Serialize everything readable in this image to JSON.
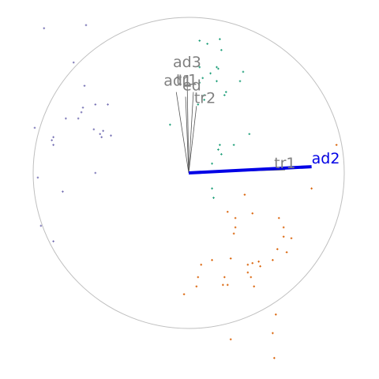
{
  "chart_data": {
    "type": "scatter",
    "subtype": "biplot with circle of correlation",
    "title": "",
    "xlabel": "",
    "ylabel": "",
    "circle_radius": 1.0,
    "xlim": [
      -1.0,
      1.21
    ],
    "ylim": [
      -1.33,
      1.0
    ],
    "grid": false,
    "legend": "none",
    "colors": {
      "circle": "#bfbfbf",
      "arrow_grey": "#555555",
      "label_grey": "#808080",
      "highlight": "#0000e6",
      "group1": "#7570b3",
      "group2": "#1b9e77",
      "group3": "#d95f02"
    },
    "variables": [
      {
        "name": "ad3",
        "x": -0.01,
        "y": 0.6,
        "color": "#808080",
        "highlight": false
      },
      {
        "name": "ad1",
        "x": -0.08,
        "y": 0.52,
        "color": "#808080",
        "highlight": false
      },
      {
        "name": "tr1",
        "x": 0.03,
        "y": 0.52,
        "color": "#808080",
        "highlight": false
      },
      {
        "name": "ed",
        "x": -0.02,
        "y": 0.49,
        "color": "#808080",
        "highlight": false
      },
      {
        "name": "tr2",
        "x": 0.05,
        "y": 0.43,
        "color": "#808080",
        "highlight": false
      },
      {
        "name": "tr1",
        "x": 0.62,
        "y": 0.02,
        "color": "#808080",
        "highlight": false
      },
      {
        "name": "ad2",
        "x": 0.79,
        "y": 0.04,
        "color": "#0000e6",
        "highlight": true
      }
    ],
    "groups": [
      {
        "color": "#7570b3",
        "points": [
          [
            -0.93,
            0.93
          ],
          [
            -0.66,
            0.95
          ],
          [
            -0.74,
            0.71
          ],
          [
            -0.67,
            0.56
          ],
          [
            -0.52,
            0.44
          ],
          [
            -0.68,
            0.42
          ],
          [
            -0.69,
            0.39
          ],
          [
            -0.79,
            0.35
          ],
          [
            -0.71,
            0.35
          ],
          [
            -0.6,
            0.44
          ],
          [
            -0.61,
            0.28
          ],
          [
            -0.55,
            0.27
          ],
          [
            -0.57,
            0.25
          ],
          [
            -0.5,
            0.24
          ],
          [
            -0.56,
            0.23
          ],
          [
            -0.87,
            0.23
          ],
          [
            -0.99,
            0.29
          ],
          [
            -0.88,
            0.21
          ],
          [
            -0.87,
            0.18
          ],
          [
            -0.6,
            0.0
          ],
          [
            -0.97,
            -0.03
          ],
          [
            -0.81,
            -0.12
          ],
          [
            -0.95,
            -0.34
          ],
          [
            -0.87,
            -0.44
          ]
        ]
      },
      {
        "color": "#1b9e77",
        "points": [
          [
            0.2,
            0.86
          ],
          [
            0.07,
            0.85
          ],
          [
            0.12,
            0.83
          ],
          [
            0.21,
            0.79
          ],
          [
            0.18,
            0.68
          ],
          [
            0.19,
            0.67
          ],
          [
            0.14,
            0.64
          ],
          [
            0.09,
            0.61
          ],
          [
            0.07,
            0.68
          ],
          [
            0.07,
            0.58
          ],
          [
            0.18,
            0.59
          ],
          [
            0.35,
            0.65
          ],
          [
            0.33,
            0.59
          ],
          [
            0.1,
            0.5
          ],
          [
            0.23,
            0.5
          ],
          [
            0.1,
            0.47
          ],
          [
            0.24,
            0.52
          ],
          [
            0.06,
            0.44
          ],
          [
            -0.12,
            0.31
          ],
          [
            0.39,
            0.25
          ],
          [
            0.2,
            0.18
          ],
          [
            0.29,
            0.18
          ],
          [
            0.15,
            0.06
          ],
          [
            0.19,
            0.15
          ],
          [
            0.21,
            0.12
          ],
          [
            0.15,
            -0.1
          ],
          [
            0.16,
            -0.16
          ]
        ]
      },
      {
        "color": "#d95f02",
        "points": [
          [
            0.95,
            0.18
          ],
          [
            0.87,
            0.11
          ],
          [
            0.79,
            -0.1
          ],
          [
            0.36,
            -0.14
          ],
          [
            0.25,
            -0.25
          ],
          [
            0.41,
            -0.26
          ],
          [
            0.3,
            -0.29
          ],
          [
            0.58,
            -0.29
          ],
          [
            0.61,
            -0.35
          ],
          [
            0.3,
            -0.35
          ],
          [
            0.29,
            -0.39
          ],
          [
            0.61,
            -0.41
          ],
          [
            0.66,
            -0.42
          ],
          [
            0.57,
            -0.49
          ],
          [
            0.63,
            -0.51
          ],
          [
            0.54,
            -0.56
          ],
          [
            0.45,
            -0.57
          ],
          [
            0.41,
            -0.58
          ],
          [
            0.38,
            -0.59
          ],
          [
            0.46,
            -0.6
          ],
          [
            0.27,
            -0.55
          ],
          [
            0.38,
            -0.64
          ],
          [
            0.15,
            -0.56
          ],
          [
            0.08,
            -0.59
          ],
          [
            0.4,
            -0.67
          ],
          [
            0.06,
            -0.67
          ],
          [
            0.23,
            -0.67
          ],
          [
            0.22,
            -0.72
          ],
          [
            0.25,
            -0.72
          ],
          [
            0.42,
            -0.73
          ],
          [
            -0.03,
            -0.78
          ],
          [
            0.05,
            -0.73
          ],
          [
            0.56,
            -0.91
          ],
          [
            0.54,
            -1.03
          ],
          [
            0.27,
            -1.07
          ],
          [
            0.55,
            -1.19
          ]
        ]
      }
    ]
  }
}
